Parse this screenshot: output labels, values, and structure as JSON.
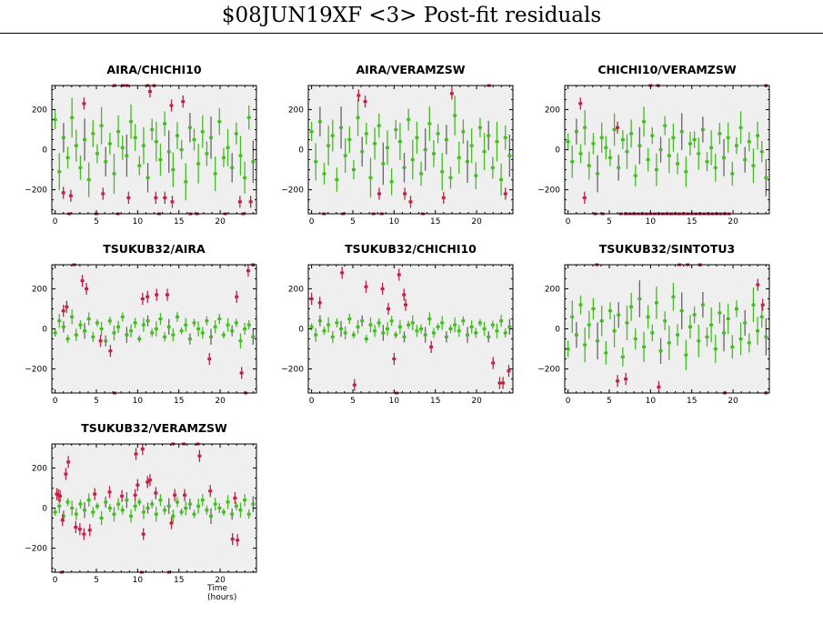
{
  "title": "$08JUN19XF <3> Post-fit residuals",
  "chart_data": {
    "type": "scatter",
    "xlabel": "Time (hours)",
    "xlim": [
      -0.4,
      24.4
    ],
    "ylim": [
      -320,
      320
    ],
    "x_ticks": [
      0,
      5,
      10,
      15,
      20
    ],
    "y_ticks": [
      200,
      0,
      -200
    ],
    "colors": {
      "good": "#44bb22",
      "outlier": "#bb2244",
      "background": "#efefef"
    },
    "panels": [
      {
        "title": "AIRA/CHICHI10",
        "err": 80,
        "values": [
          150,
          -110,
          60,
          -40,
          160,
          20,
          -90,
          50,
          -150,
          80,
          -20,
          120,
          -60,
          30,
          -120,
          90,
          10,
          -30,
          140,
          60,
          -80,
          20,
          -140,
          100,
          40,
          -50,
          130,
          -10,
          -100,
          70,
          0,
          -160,
          110,
          50,
          -70,
          90,
          -20,
          60,
          -120,
          140,
          -40,
          10,
          -90,
          80,
          -30,
          -140,
          160,
          -60
        ],
        "outliers": [
          [
            1,
            -215
          ],
          [
            1.7,
            -320
          ],
          [
            1.9,
            -230
          ],
          [
            3.5,
            230
          ],
          [
            5,
            -320
          ],
          [
            5.8,
            -220
          ],
          [
            7.2,
            320
          ],
          [
            7.6,
            -320
          ],
          [
            8.2,
            320
          ],
          [
            8.7,
            320
          ],
          [
            8.9,
            -240
          ],
          [
            11.2,
            320
          ],
          [
            11.5,
            290
          ],
          [
            12,
            320
          ],
          [
            12.2,
            -240
          ],
          [
            12.6,
            -320
          ],
          [
            13.3,
            -240
          ],
          [
            14.1,
            220
          ],
          [
            14.2,
            -260
          ],
          [
            15.5,
            240
          ],
          [
            16.4,
            -320
          ],
          [
            17.2,
            -320
          ],
          [
            20.6,
            -320
          ],
          [
            22.4,
            -260
          ],
          [
            22.8,
            -320
          ],
          [
            23.7,
            -260
          ]
        ]
      },
      {
        "title": "AIRA/VERAMZSW",
        "err": 80,
        "values": [
          90,
          -60,
          140,
          -120,
          20,
          70,
          -150,
          110,
          -30,
          50,
          -100,
          160,
          -10,
          80,
          -140,
          30,
          120,
          -70,
          10,
          -160,
          100,
          40,
          -90,
          150,
          -50,
          60,
          -120,
          0,
          130,
          -20,
          80,
          -110,
          50,
          -140,
          170,
          -40,
          90,
          -60,
          20,
          -130,
          110,
          -10,
          70,
          -90,
          40,
          -150,
          60,
          -30
        ],
        "outliers": [
          [
            1.5,
            -320
          ],
          [
            3.8,
            -320
          ],
          [
            5.7,
            270
          ],
          [
            6.5,
            240
          ],
          [
            7.5,
            -320
          ],
          [
            8.2,
            -220
          ],
          [
            8.5,
            -320
          ],
          [
            11.3,
            -220
          ],
          [
            12,
            -260
          ],
          [
            13.5,
            -320
          ],
          [
            16,
            -240
          ],
          [
            17,
            280
          ],
          [
            21.5,
            320
          ],
          [
            23.5,
            -220
          ]
        ]
      },
      {
        "title": "CHICHI10/VERAMZSW",
        "err": 70,
        "values": [
          40,
          -60,
          90,
          -20,
          110,
          -80,
          30,
          -120,
          60,
          10,
          -40,
          100,
          -90,
          50,
          -10,
          80,
          -130,
          20,
          140,
          -50,
          70,
          -100,
          0,
          120,
          -30,
          60,
          -70,
          90,
          -110,
          30,
          50,
          -20,
          100,
          -60,
          10,
          -90,
          80,
          -40,
          60,
          -120,
          20,
          110,
          -50,
          40,
          -80,
          70,
          -10,
          -140
        ],
        "outliers": [
          [
            1.5,
            230
          ],
          [
            2,
            -240
          ],
          [
            3.3,
            -320
          ],
          [
            4.2,
            -320
          ],
          [
            6,
            110
          ],
          [
            6.4,
            -320
          ],
          [
            7,
            -320
          ],
          [
            7.5,
            -320
          ],
          [
            8,
            -320
          ],
          [
            8.5,
            -320
          ],
          [
            9,
            -320
          ],
          [
            9.5,
            -320
          ],
          [
            10,
            320
          ],
          [
            10,
            -320
          ],
          [
            10.5,
            -320
          ],
          [
            10.9,
            320
          ],
          [
            11,
            -320
          ],
          [
            11.5,
            -320
          ],
          [
            12,
            -320
          ],
          [
            12.5,
            -320
          ],
          [
            13,
            -320
          ],
          [
            13.5,
            -320
          ],
          [
            14,
            -320
          ],
          [
            14.5,
            -320
          ],
          [
            15,
            -320
          ],
          [
            15.5,
            -320
          ],
          [
            16,
            -320
          ],
          [
            16.5,
            -320
          ],
          [
            17,
            -320
          ],
          [
            17.5,
            -320
          ],
          [
            18,
            -320
          ],
          [
            18.5,
            -320
          ],
          [
            19,
            -320
          ],
          [
            19.5,
            -320
          ],
          [
            24,
            320
          ]
        ]
      },
      {
        "title": "TSUKUB32/AIRA",
        "err": 30,
        "values": [
          -20,
          40,
          10,
          -50,
          60,
          -30,
          20,
          -10,
          50,
          -40,
          30,
          0,
          -60,
          40,
          -20,
          10,
          60,
          -30,
          -10,
          30,
          -50,
          20,
          40,
          -20,
          0,
          50,
          -40,
          10,
          -30,
          60,
          -10,
          20,
          -50,
          30,
          0,
          -20,
          40,
          -40,
          10,
          50,
          -30,
          20,
          -10,
          30,
          -60,
          0,
          20,
          -40
        ],
        "outliers": [
          [
            1,
            90
          ],
          [
            1.4,
            110
          ],
          [
            2.3,
            320
          ],
          [
            3.3,
            240
          ],
          [
            3.8,
            200
          ],
          [
            5.5,
            -60
          ],
          [
            6.7,
            -110
          ],
          [
            7.2,
            -320
          ],
          [
            10.6,
            150
          ],
          [
            11.2,
            160
          ],
          [
            12.3,
            170
          ],
          [
            13.6,
            170
          ],
          [
            18.7,
            -150
          ],
          [
            22,
            160
          ],
          [
            22.6,
            -220
          ],
          [
            23.1,
            -320
          ],
          [
            23.4,
            290
          ],
          [
            24,
            320
          ]
        ]
      },
      {
        "title": "TSUKUB32/CHICHI10",
        "err": 30,
        "values": [
          10,
          -30,
          40,
          -10,
          20,
          -40,
          30,
          0,
          -20,
          50,
          -30,
          10,
          40,
          -50,
          20,
          -10,
          30,
          -20,
          0,
          40,
          -30,
          10,
          -40,
          20,
          30,
          -10,
          0,
          -30,
          50,
          -20,
          10,
          30,
          -40,
          0,
          20,
          -10,
          40,
          -30,
          10,
          -20,
          30,
          0,
          -40,
          20,
          -10,
          40,
          -20,
          10
        ],
        "outliers": [
          [
            0,
            150
          ],
          [
            1,
            130
          ],
          [
            3.7,
            280
          ],
          [
            5.2,
            -280
          ],
          [
            6.6,
            210
          ],
          [
            8.6,
            200
          ],
          [
            9.3,
            100
          ],
          [
            10,
            -150
          ],
          [
            10.3,
            -320
          ],
          [
            10.6,
            270
          ],
          [
            11.2,
            170
          ],
          [
            11.4,
            120
          ],
          [
            14.5,
            -90
          ],
          [
            22,
            -170
          ],
          [
            22.8,
            -270
          ],
          [
            23.2,
            -270
          ],
          [
            23.9,
            -210
          ]
        ]
      },
      {
        "title": "TSUKUB32/SINTOTU3",
        "err": 70,
        "values": [
          -100,
          60,
          -30,
          120,
          -80,
          20,
          100,
          -60,
          40,
          -120,
          90,
          -10,
          70,
          -140,
          30,
          110,
          -50,
          150,
          -90,
          60,
          -20,
          130,
          -110,
          40,
          -70,
          160,
          -30,
          90,
          -130,
          10,
          70,
          -60,
          120,
          -40,
          20,
          -100,
          80,
          -20,
          50,
          -90,
          100,
          -50,
          30,
          -70,
          120,
          -10,
          60,
          -40
        ],
        "outliers": [
          [
            3.5,
            320
          ],
          [
            6,
            -260
          ],
          [
            7,
            -250
          ],
          [
            11,
            -290
          ],
          [
            13.5,
            320
          ],
          [
            14.5,
            320
          ],
          [
            16,
            320
          ],
          [
            19,
            -320
          ],
          [
            23,
            220
          ],
          [
            23.6,
            120
          ],
          [
            24,
            -320
          ]
        ]
      },
      {
        "title": "TSUKUB32/VERAMZSW",
        "err": 30,
        "values": [
          -20,
          10,
          -40,
          30,
          0,
          -30,
          20,
          -10,
          40,
          -20,
          10,
          -50,
          30,
          0,
          -30,
          20,
          -10,
          40,
          -40,
          10,
          30,
          -20,
          0,
          20,
          -30,
          40,
          -10,
          10,
          -40,
          30,
          -20,
          0,
          20,
          -30,
          10,
          40,
          -10,
          -40,
          20,
          0,
          -20,
          30,
          -30,
          10,
          -10,
          40,
          -30,
          20
        ],
        "outliers": [
          [
            0.2,
            70
          ],
          [
            0.4,
            65
          ],
          [
            0.6,
            60
          ],
          [
            0.8,
            -320
          ],
          [
            0.9,
            -60
          ],
          [
            1.3,
            170
          ],
          [
            1.6,
            230
          ],
          [
            2.5,
            -95
          ],
          [
            3,
            -105
          ],
          [
            3.5,
            -130
          ],
          [
            4.2,
            -110
          ],
          [
            4.8,
            70
          ],
          [
            6.6,
            80
          ],
          [
            8.1,
            60
          ],
          [
            9.7,
            65
          ],
          [
            9.8,
            270
          ],
          [
            10,
            115
          ],
          [
            10.5,
            -320
          ],
          [
            10.6,
            295
          ],
          [
            10.7,
            -130
          ],
          [
            11.2,
            130
          ],
          [
            11.5,
            140
          ],
          [
            12.2,
            75
          ],
          [
            13.8,
            -320
          ],
          [
            14.1,
            -75
          ],
          [
            14.3,
            320
          ],
          [
            14.5,
            65
          ],
          [
            15.6,
            320
          ],
          [
            15.7,
            65
          ],
          [
            17.3,
            320
          ],
          [
            17.5,
            260
          ],
          [
            18.8,
            85
          ],
          [
            21.5,
            -155
          ],
          [
            21.8,
            50
          ],
          [
            22.1,
            -160
          ]
        ]
      }
    ]
  }
}
